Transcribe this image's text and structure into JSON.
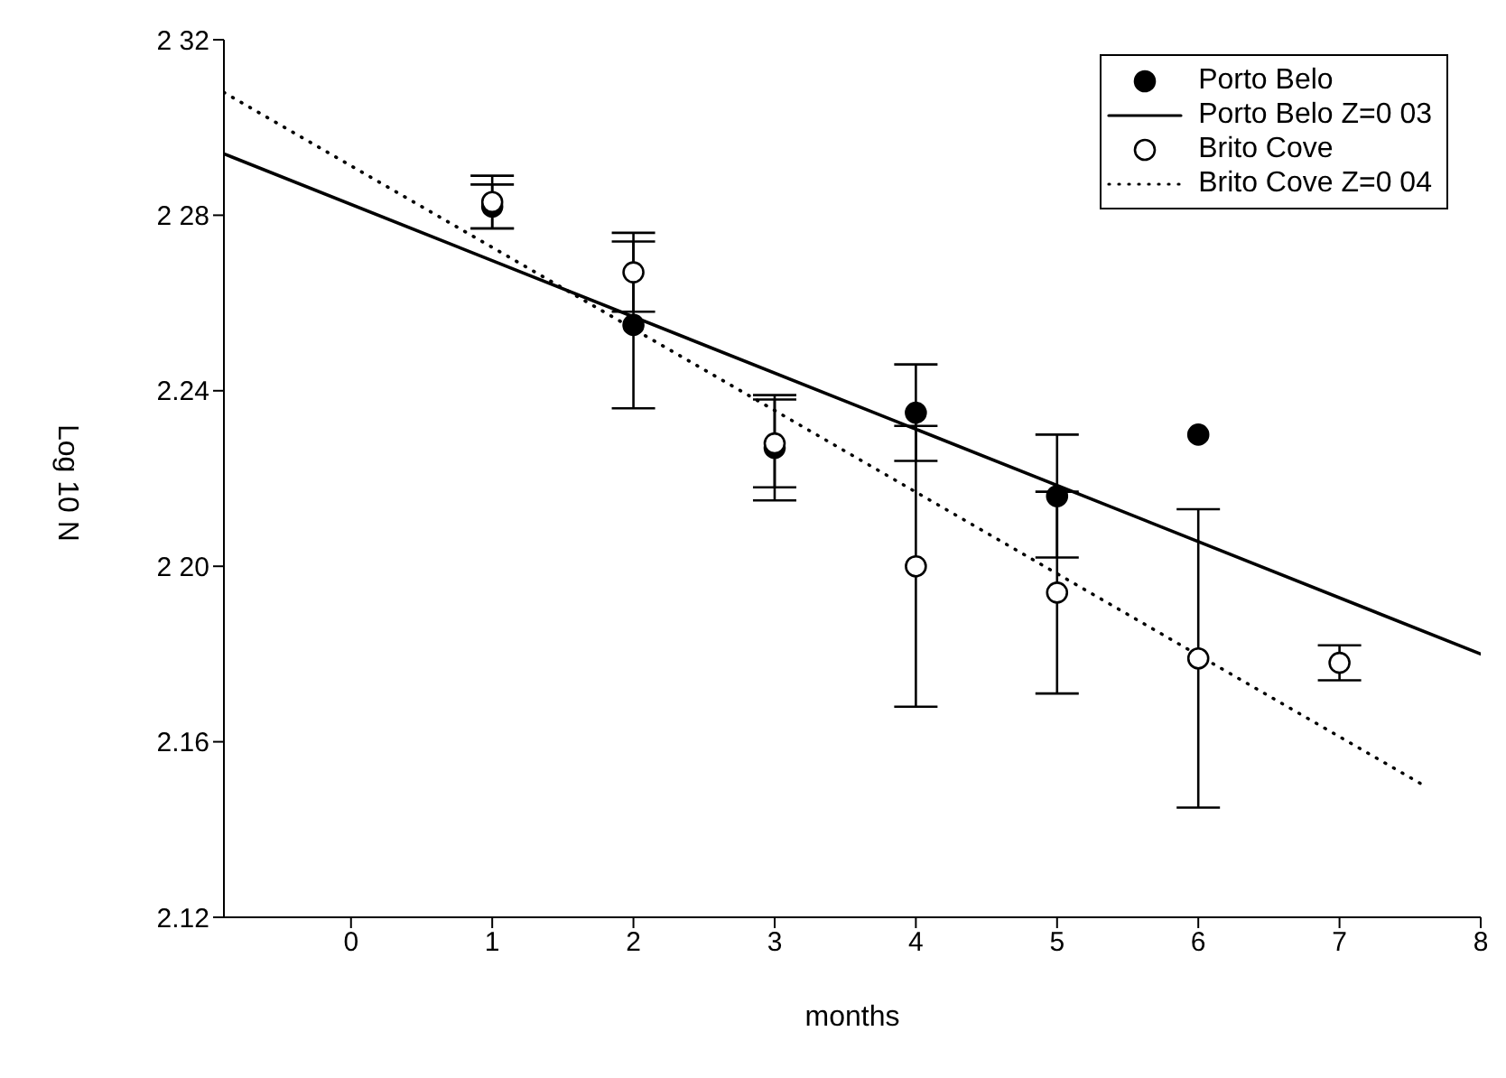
{
  "chart_data": {
    "type": "scatter",
    "xlabel": "months",
    "ylabel": "Log 10 N",
    "xlim": [
      -0.9,
      8
    ],
    "xticks": [
      0,
      1,
      2,
      3,
      4,
      {
        "value": 5,
        "label": "5"
      },
      6,
      7,
      8
    ],
    "ylim": [
      2.12,
      2.32
    ],
    "yticks": [
      {
        "value": 2.12,
        "label": "2.12"
      },
      {
        "value": 2.16,
        "label": "2.16"
      },
      {
        "value": 2.2,
        "label": "2 20"
      },
      {
        "value": 2.24,
        "label": "2.24"
      },
      {
        "value": 2.28,
        "label": "2 28"
      },
      {
        "value": 2.32,
        "label": "2 32"
      }
    ],
    "legend": "top right",
    "series": [
      {
        "name": "Porto Belo",
        "marker": "circle",
        "color": "#000000",
        "x": [
          1,
          2,
          3,
          4,
          5,
          6
        ],
        "values": [
          2.282,
          2.255,
          2.227,
          2.235,
          2.216,
          2.23
        ],
        "errors": [
          0.005,
          0.019,
          0.012,
          0.011,
          0.014,
          null
        ]
      },
      {
        "name": "Porto Belo Z=0 03",
        "type": "line",
        "marker": "none",
        "color": "#000000",
        "line_style": "solid",
        "x": [
          -0.9,
          8
        ],
        "values": [
          2.294,
          2.18
        ]
      },
      {
        "name": "Brito Cove",
        "marker": "circle",
        "color": "#ffffff",
        "x": [
          1,
          2,
          3,
          4,
          5,
          6,
          7
        ],
        "values": [
          2.283,
          2.267,
          2.228,
          2.2,
          2.194,
          2.179,
          2.178
        ],
        "errors": [
          0.006,
          0.009,
          0.01,
          0.032,
          0.023,
          0.034,
          0.004
        ]
      },
      {
        "name": "Brito Cove Z=0 04",
        "type": "line",
        "marker": "none",
        "color": "#000000",
        "line_style": "dotted",
        "x": [
          -0.9,
          7.6
        ],
        "values": [
          2.308,
          2.15
        ]
      }
    ]
  }
}
